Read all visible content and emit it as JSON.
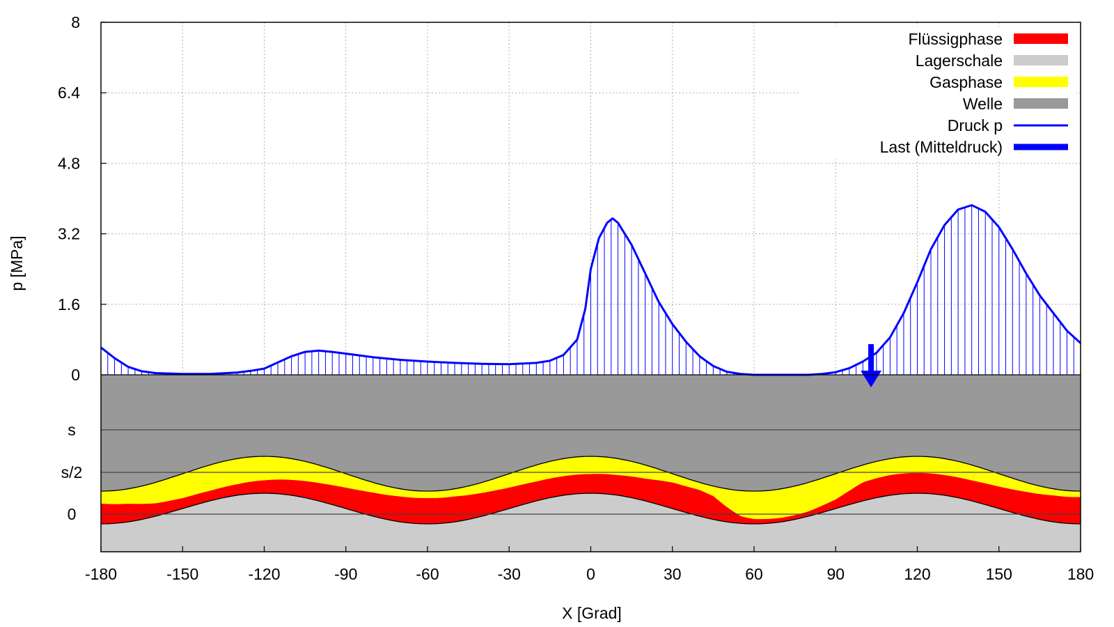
{
  "chart_data": {
    "type": "line",
    "xlabel": "X [Grad]",
    "ylabel": "p [MPa]",
    "xlim": [
      -180,
      180
    ],
    "ylim": [
      0,
      8
    ],
    "x_ticks": [
      "-180",
      "-150",
      "-120",
      "-90",
      "-60",
      "-30",
      "0",
      "30",
      "60",
      "90",
      "120",
      "150",
      "180"
    ],
    "y_ticks": [
      "0",
      "1.6",
      "3.2",
      "4.8",
      "6.4",
      "8"
    ],
    "gap_ticks": [
      "s",
      "s/2",
      "0"
    ],
    "grid": true,
    "legend_position": "top-right",
    "legend": [
      {
        "label": "Flüssigphase",
        "color": "#ff0000",
        "style": "box"
      },
      {
        "label": "Lagerschale",
        "color": "#cccccc",
        "style": "box"
      },
      {
        "label": "Gasphase",
        "color": "#ffff00",
        "style": "box"
      },
      {
        "label": "Welle",
        "color": "#999999",
        "style": "box"
      },
      {
        "label": "Druck p",
        "color": "#0000ff",
        "style": "line"
      },
      {
        "label": "Last (Mitteldruck)",
        "color": "#0000ff",
        "style": "thick"
      }
    ],
    "series": [
      {
        "name": "Druck p",
        "x": [
          -180,
          -175,
          -170,
          -165,
          -160,
          -150,
          -140,
          -130,
          -125,
          -120,
          -115,
          -110,
          -105,
          -100,
          -95,
          -90,
          -80,
          -70,
          -60,
          -50,
          -40,
          -30,
          -20,
          -15,
          -10,
          -5,
          -2,
          0,
          3,
          6,
          8,
          10,
          12,
          15,
          20,
          25,
          30,
          35,
          40,
          45,
          50,
          55,
          60,
          70,
          80,
          85,
          90,
          95,
          100,
          105,
          110,
          115,
          120,
          125,
          130,
          135,
          140,
          145,
          150,
          155,
          160,
          165,
          170,
          175,
          180
        ],
        "values": [
          0.62,
          0.38,
          0.18,
          0.08,
          0.04,
          0.02,
          0.02,
          0.05,
          0.09,
          0.14,
          0.28,
          0.42,
          0.52,
          0.55,
          0.52,
          0.48,
          0.4,
          0.34,
          0.3,
          0.27,
          0.25,
          0.24,
          0.27,
          0.32,
          0.45,
          0.8,
          1.5,
          2.4,
          3.1,
          3.45,
          3.55,
          3.45,
          3.25,
          2.95,
          2.3,
          1.65,
          1.15,
          0.75,
          0.42,
          0.2,
          0.07,
          0.02,
          0.0,
          0.0,
          0.0,
          0.02,
          0.06,
          0.15,
          0.3,
          0.5,
          0.85,
          1.4,
          2.1,
          2.85,
          3.4,
          3.75,
          3.85,
          3.7,
          3.35,
          2.85,
          2.3,
          1.8,
          1.4,
          1.0,
          0.72
        ]
      }
    ],
    "load_arrow_x": 103,
    "film": {
      "x": [
        -180,
        -170,
        -160,
        -150,
        -140,
        -130,
        -120,
        -110,
        -100,
        -90,
        -80,
        -70,
        -60,
        -50,
        -40,
        -30,
        -20,
        -10,
        0,
        10,
        20,
        30,
        40,
        45,
        50,
        55,
        60,
        70,
        80,
        90,
        100,
        110,
        120,
        130,
        140,
        150,
        160,
        170,
        180
      ],
      "liquid_top": [
        0.62,
        0.55,
        0.38,
        0.3,
        0.28,
        0.3,
        0.35,
        0.42,
        0.5,
        0.6,
        0.7,
        0.77,
        0.79,
        0.77,
        0.69,
        0.6,
        0.54,
        0.52,
        0.52,
        0.55,
        0.62,
        0.75,
        0.78,
        0.7,
        0.45,
        0.22,
        0.15,
        0.12,
        0.14,
        0.26,
        0.52,
        0.55,
        0.55,
        0.55,
        0.57,
        0.63,
        0.72,
        0.8,
        0.82
      ]
    }
  }
}
